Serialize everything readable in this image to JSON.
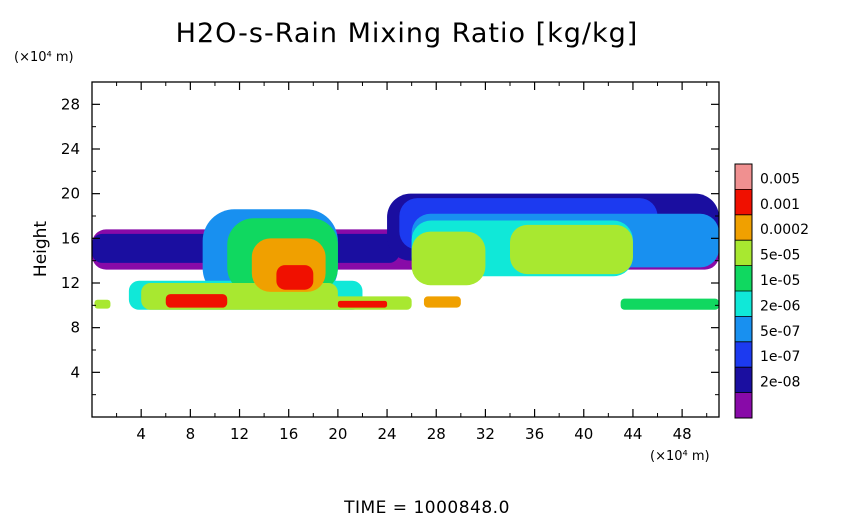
{
  "chart_data": {
    "type": "heatmap",
    "title": "H2O-s-Rain Mixing Ratio [kg/kg]",
    "ylabel": "Height",
    "xlabel": "",
    "x_unit": "(×10⁴ m)",
    "y_unit": "(×10⁴ m)",
    "xlim": [
      0,
      51
    ],
    "ylim": [
      0,
      30
    ],
    "x_ticks": [
      "4",
      "8",
      "12",
      "16",
      "20",
      "24",
      "28",
      "32",
      "36",
      "40",
      "44",
      "48"
    ],
    "y_ticks": [
      "4",
      "8",
      "12",
      "16",
      "20",
      "24",
      "28"
    ],
    "footer": "TIME = 1000848.0",
    "colorbar": {
      "labels": [
        "0.005",
        "0.001",
        "0.0002",
        "5e-05",
        "1e-05",
        "2e-06",
        "5e-07",
        "1e-07",
        "2e-08"
      ],
      "colors": [
        "#880aa8",
        "#1a0ea0",
        "#1c3af0",
        "#1890f0",
        "#10e8d8",
        "#10d860",
        "#a8e830",
        "#f0a000",
        "#f01000",
        "#f09090"
      ]
    },
    "regions": [
      {
        "x": [
          0,
          51
        ],
        "y": [
          13.2,
          16.8
        ],
        "level": 0
      },
      {
        "x": [
          0,
          25
        ],
        "y": [
          13.8,
          16.4
        ],
        "level": 1
      },
      {
        "x": [
          24,
          51
        ],
        "y": [
          14.0,
          20.0
        ],
        "level": 1
      },
      {
        "x": [
          25,
          46
        ],
        "y": [
          15.0,
          19.6
        ],
        "level": 2
      },
      {
        "x": [
          26,
          51
        ],
        "y": [
          13.4,
          18.2
        ],
        "level": 3
      },
      {
        "x": [
          9,
          20
        ],
        "y": [
          10.5,
          18.6
        ],
        "level": 3
      },
      {
        "x": [
          3,
          22
        ],
        "y": [
          9.6,
          12.2
        ],
        "level": 4
      },
      {
        "x": [
          26,
          44
        ],
        "y": [
          12.6,
          17.6
        ],
        "level": 4
      },
      {
        "x": [
          11,
          20
        ],
        "y": [
          11.0,
          17.8
        ],
        "level": 5
      },
      {
        "x": [
          34,
          44
        ],
        "y": [
          12.8,
          17.2
        ],
        "level": 6
      },
      {
        "x": [
          26,
          32
        ],
        "y": [
          11.8,
          16.6
        ],
        "level": 6
      },
      {
        "x": [
          4,
          20
        ],
        "y": [
          9.6,
          12.0
        ],
        "level": 6
      },
      {
        "x": [
          13,
          19
        ],
        "y": [
          11.2,
          16.0
        ],
        "level": 7
      },
      {
        "x": [
          6,
          11
        ],
        "y": [
          9.8,
          11.0
        ],
        "level": 8
      },
      {
        "x": [
          15,
          18
        ],
        "y": [
          11.4,
          13.6
        ],
        "level": 8
      },
      {
        "x": [
          19,
          26
        ],
        "y": [
          9.6,
          10.8
        ],
        "level": 6
      },
      {
        "x": [
          20,
          24
        ],
        "y": [
          9.8,
          10.4
        ],
        "level": 8
      },
      {
        "x": [
          27,
          30
        ],
        "y": [
          9.8,
          10.8
        ],
        "level": 7
      },
      {
        "x": [
          0.2,
          1.5
        ],
        "y": [
          9.7,
          10.5
        ],
        "level": 6
      },
      {
        "x": [
          43,
          51
        ],
        "y": [
          9.6,
          10.6
        ],
        "level": 5
      }
    ]
  }
}
